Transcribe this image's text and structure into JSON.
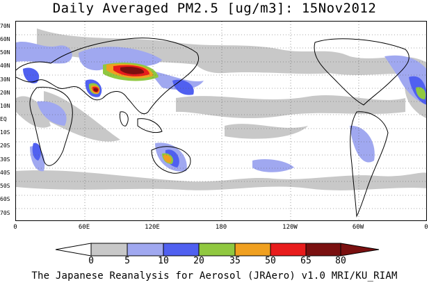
{
  "title": "Daily Averaged PM2.5 [ug/m3]: 15Nov2012",
  "lat_labels": [
    "70N",
    "60N",
    "50N",
    "40N",
    "30N",
    "20N",
    "10N",
    "EQ",
    "10S",
    "20S",
    "30S",
    "40S",
    "50S",
    "60S",
    "70S"
  ],
  "lon_labels": [
    "0",
    "60E",
    "120E",
    "180",
    "120W",
    "60W",
    "0"
  ],
  "colorbar": {
    "labels": [
      "0",
      "5",
      "10",
      "20",
      "35",
      "50",
      "65",
      "80"
    ],
    "colors": [
      "#ffffff",
      "#c8c8c8",
      "#a0a8f0",
      "#5060f0",
      "#90c840",
      "#f0a020",
      "#e81c1c",
      "#7a1010"
    ]
  },
  "credit": "The Japanese Reanalysis for Aerosol (JRAero) v1.0 MRI/KU_RIAM"
}
